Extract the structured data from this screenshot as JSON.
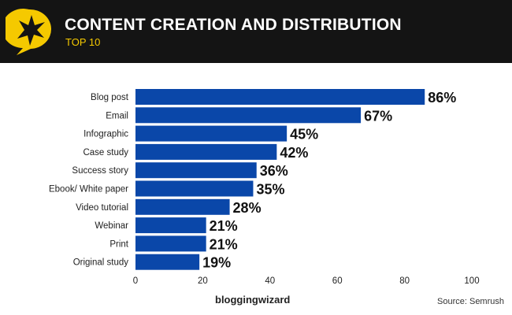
{
  "header": {
    "title": "CONTENT CREATION AND DISTRIBUTION",
    "subtitle": "TOP 10",
    "accent": "#f5c900"
  },
  "chart_data": {
    "type": "bar",
    "orientation": "horizontal",
    "categories": [
      "Blog post",
      "Email",
      "Infographic",
      "Case study",
      "Success story",
      "Ebook/ White paper",
      "Video tutorial",
      "Webinar",
      "Print",
      "Original study"
    ],
    "values": [
      86,
      67,
      45,
      42,
      36,
      35,
      28,
      21,
      21,
      19
    ],
    "data_labels": [
      "86%",
      "67%",
      "45%",
      "42%",
      "36%",
      "35%",
      "28%",
      "21%",
      "21%",
      "19%"
    ],
    "xlim": [
      0,
      100
    ],
    "xticks": [
      0,
      20,
      40,
      60,
      80,
      100
    ],
    "grid": false,
    "bar_color": "#0a47a9"
  },
  "footer": {
    "brand": "bloggingwizard",
    "source": "Source: Semrush"
  }
}
